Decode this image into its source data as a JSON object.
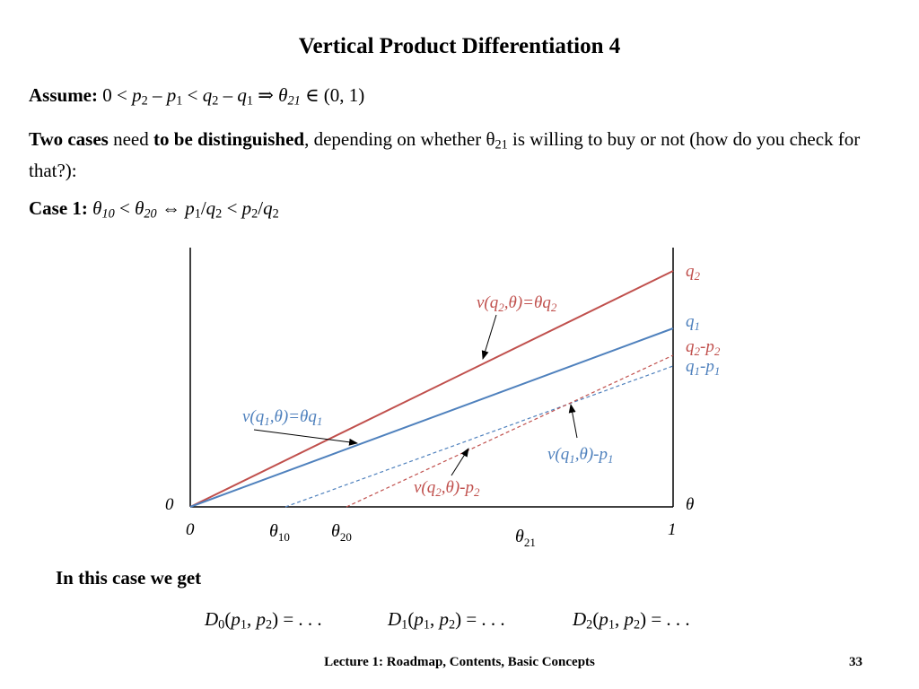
{
  "slide": {
    "title": "Vertical Product Differentiation 4",
    "assume_label": "Assume:",
    "two_cases": "Two cases",
    "need": " need ",
    "to_be_distinguished": "to be distinguished",
    "depending_text": ", depending on whether θ",
    "depending_sub": "21",
    "depending_rest": " is willing to buy or not (how do you check for that?):",
    "case1_label": "Case 1:",
    "in_this_case": "In this case we get",
    "footer": "Lecture 1: Roadmap, Contents, Basic Concepts",
    "page_number": "33"
  },
  "figure": {
    "colors": {
      "q2": "#c0504d",
      "q1": "#4f81bd",
      "axis": "#000000"
    },
    "axis_labels": {
      "origin_y": "0",
      "origin_x": "0",
      "x_end": "1",
      "x_axis": "θ"
    },
    "right_labels": {
      "q2": "q",
      "q2_sub": "2",
      "q1": "q",
      "q1_sub": "1"
    },
    "ticks": {
      "theta": "θ",
      "t10": "10",
      "t20": "20",
      "t21": "21"
    }
  }
}
